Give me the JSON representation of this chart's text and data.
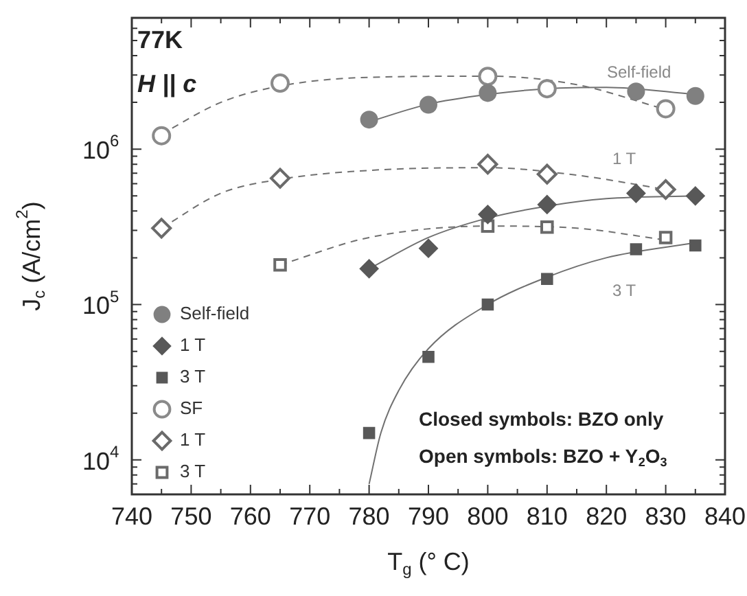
{
  "chart_data": {
    "type": "scatter",
    "xlabel": "T$_{g}$ (° C)",
    "ylabel": "J$_{c}$ (A/cm$^{2}$)",
    "log": "y",
    "grid": false,
    "legend": "bottom left",
    "xlim": [
      740,
      840
    ],
    "ylim": [
      6000,
      7000000
    ],
    "xticks": [
      740,
      {
        "value": 745,
        "label": null
      },
      750,
      {
        "value": 755,
        "label": null
      },
      760,
      {
        "value": 765,
        "label": null
      },
      770,
      {
        "value": 775,
        "label": null
      },
      780,
      {
        "value": 785,
        "label": null
      },
      790,
      {
        "value": 795,
        "label": null
      },
      800,
      {
        "value": 805,
        "label": null
      },
      810,
      {
        "value": 815,
        "label": null
      },
      820,
      {
        "value": 825,
        "label": null
      },
      830,
      {
        "value": 835,
        "label": null
      },
      840
    ],
    "yticks": [
      {
        "value": 7000,
        "label": null
      },
      {
        "value": 8000,
        "label": null
      },
      {
        "value": 9000,
        "label": null
      },
      {
        "value": 10000,
        "label": "10$^{4}$"
      },
      {
        "value": 20000,
        "label": null
      },
      {
        "value": 30000,
        "label": null
      },
      {
        "value": 40000,
        "label": null
      },
      {
        "value": 50000,
        "label": null
      },
      {
        "value": 60000,
        "label": null
      },
      {
        "value": 70000,
        "label": null
      },
      {
        "value": 80000,
        "label": null
      },
      {
        "value": 90000,
        "label": null
      },
      {
        "value": 100000,
        "label": "10$^{5}$"
      },
      {
        "value": 200000,
        "label": null
      },
      {
        "value": 300000,
        "label": null
      },
      {
        "value": 400000,
        "label": null
      },
      {
        "value": 500000,
        "label": null
      },
      {
        "value": 600000,
        "label": null
      },
      {
        "value": 700000,
        "label": null
      },
      {
        "value": 800000,
        "label": null
      },
      {
        "value": 900000,
        "label": null
      },
      {
        "value": 1000000,
        "label": "10$^{6}$"
      },
      {
        "value": 2000000,
        "label": null
      },
      {
        "value": 3000000,
        "label": null
      },
      {
        "value": 4000000,
        "label": null
      },
      {
        "value": 5000000,
        "label": null
      },
      {
        "value": 6000000,
        "label": null
      },
      {
        "value": 7000000,
        "label": null
      }
    ],
    "series": [
      {
        "name": "Self-field",
        "type": "scatter",
        "marker": "circle",
        "color": "#808080",
        "x": [
          780,
          790,
          800,
          825,
          835
        ],
        "values": [
          1550000,
          1930000,
          2300000,
          2350000,
          2200000
        ]
      },
      {
        "name": "1 T",
        "type": "scatter",
        "marker": "diamond",
        "color": "#585858",
        "x": [
          780,
          790,
          800,
          810,
          825,
          835
        ],
        "values": [
          170000,
          230000,
          380000,
          440000,
          520000,
          500000
        ]
      },
      {
        "name": "3 T",
        "type": "scatter",
        "marker": "square",
        "color": "#585858",
        "x": [
          780,
          790,
          800,
          810,
          825,
          835
        ],
        "values": [
          14900,
          46000,
          100000,
          146000,
          227000,
          240000
        ]
      },
      {
        "name": "SF",
        "type": "scatter",
        "marker": "circle-open",
        "color": "#8a8a8a",
        "x": [
          745,
          765,
          800,
          810,
          830
        ],
        "values": [
          1220000,
          2660000,
          2940000,
          2450000,
          1820000
        ]
      },
      {
        "name": "1 T",
        "type": "scatter",
        "marker": "diamond-open",
        "color": "#6a6a6a",
        "x": [
          745,
          765,
          800,
          810,
          830
        ],
        "values": [
          310000,
          650000,
          800000,
          690000,
          550000
        ]
      },
      {
        "name": "3 T",
        "type": "scatter",
        "marker": "square-open",
        "color": "#6a6a6a",
        "x": [
          765,
          800,
          810,
          830
        ],
        "values": [
          180000,
          320000,
          315000,
          270000
        ]
      },
      {
        "type": "line",
        "marker": "none",
        "line_style": "solid",
        "color": "#707070",
        "x": [
          780,
          790,
          800,
          810,
          820,
          835
        ],
        "values": [
          1500000,
          1950000,
          2250000,
          2450000,
          2500000,
          2250000
        ]
      },
      {
        "type": "line",
        "marker": "none",
        "line_style": "dashed",
        "color": "#707070",
        "x": [
          745,
          755,
          765,
          780,
          800,
          815,
          830
        ],
        "values": [
          1250000,
          2000000,
          2550000,
          2900000,
          2950000,
          2600000,
          1800000
        ]
      },
      {
        "type": "line",
        "marker": "none",
        "line_style": "solid",
        "color": "#707070",
        "x": [
          780,
          790,
          800,
          810,
          820,
          835
        ],
        "values": [
          170000,
          270000,
          360000,
          430000,
          480000,
          500000
        ]
      },
      {
        "type": "line",
        "marker": "none",
        "line_style": "dashed",
        "color": "#707070",
        "x": [
          745,
          755,
          765,
          780,
          800,
          815,
          830
        ],
        "values": [
          310000,
          520000,
          640000,
          730000,
          760000,
          680000,
          550000
        ]
      },
      {
        "type": "line",
        "marker": "none",
        "line_style": "solid",
        "color": "#707070",
        "x": [
          780,
          782,
          785,
          790,
          800,
          810,
          820,
          835
        ],
        "values": [
          7000,
          15000,
          28000,
          52000,
          100000,
          150000,
          200000,
          250000
        ]
      },
      {
        "type": "line",
        "marker": "none",
        "line_style": "dashed",
        "color": "#707070",
        "x": [
          765,
          780,
          800,
          815,
          830
        ],
        "values": [
          180000,
          270000,
          320000,
          310000,
          260000
        ]
      }
    ],
    "annotations": [
      "77K",
      "H || c",
      "Self-field",
      "1 T",
      "3 T",
      "Closed symbols: BZO only",
      "Open symbols: BZO + Y$_{2}$O$_{3}$"
    ]
  }
}
